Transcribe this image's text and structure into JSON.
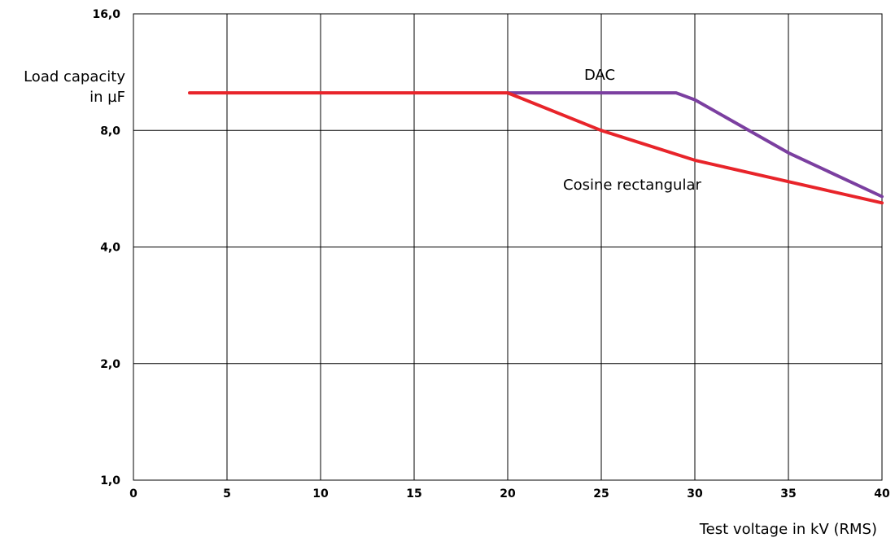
{
  "chart_data": {
    "type": "line",
    "title": "",
    "xlabel": "Test voltage in kV (RMS)",
    "ylabel_lines": [
      "Load capacity",
      "in µF"
    ],
    "xlim": [
      0,
      40
    ],
    "ylim": [
      1,
      16
    ],
    "yscale": "log2",
    "grid": true,
    "x_ticks": [
      0,
      5,
      10,
      15,
      20,
      25,
      30,
      35,
      40
    ],
    "x_tick_labels": [
      "0",
      "5",
      "10",
      "15",
      "20",
      "25",
      "30",
      "35",
      "40"
    ],
    "y_ticks": [
      1,
      2,
      4,
      8,
      16
    ],
    "y_tick_labels": [
      "1,0",
      "2,0",
      "4,0",
      "8,0",
      "16,0"
    ],
    "series": [
      {
        "name": "Cosine rectangular",
        "color": "#e8242a",
        "points": [
          [
            3,
            10
          ],
          [
            20,
            10
          ],
          [
            25,
            8
          ],
          [
            30,
            6.7
          ],
          [
            35,
            5.9
          ],
          [
            40,
            5.2
          ]
        ]
      },
      {
        "name": "DAC",
        "color": "#7b3fa0",
        "points": [
          [
            20,
            10
          ],
          [
            29,
            10
          ],
          [
            30,
            9.6
          ],
          [
            35,
            7
          ],
          [
            40,
            5.4
          ]
        ]
      }
    ],
    "annotations": [
      {
        "text": "DAC",
        "series": "DAC"
      },
      {
        "text": "Cosine rectangular",
        "series": "Cosine rectangular"
      }
    ]
  }
}
